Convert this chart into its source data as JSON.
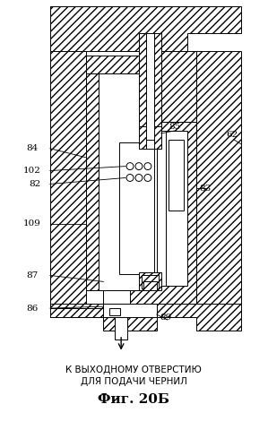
{
  "title": "Фиг. 20Б",
  "subtitle1": "К ВЫХОДНОМУ ОТВЕРСТИЮ",
  "subtitle2": "ДЛЯ ПОДАЧИ ЧЕРНИЛ",
  "bg_color": "#ffffff"
}
